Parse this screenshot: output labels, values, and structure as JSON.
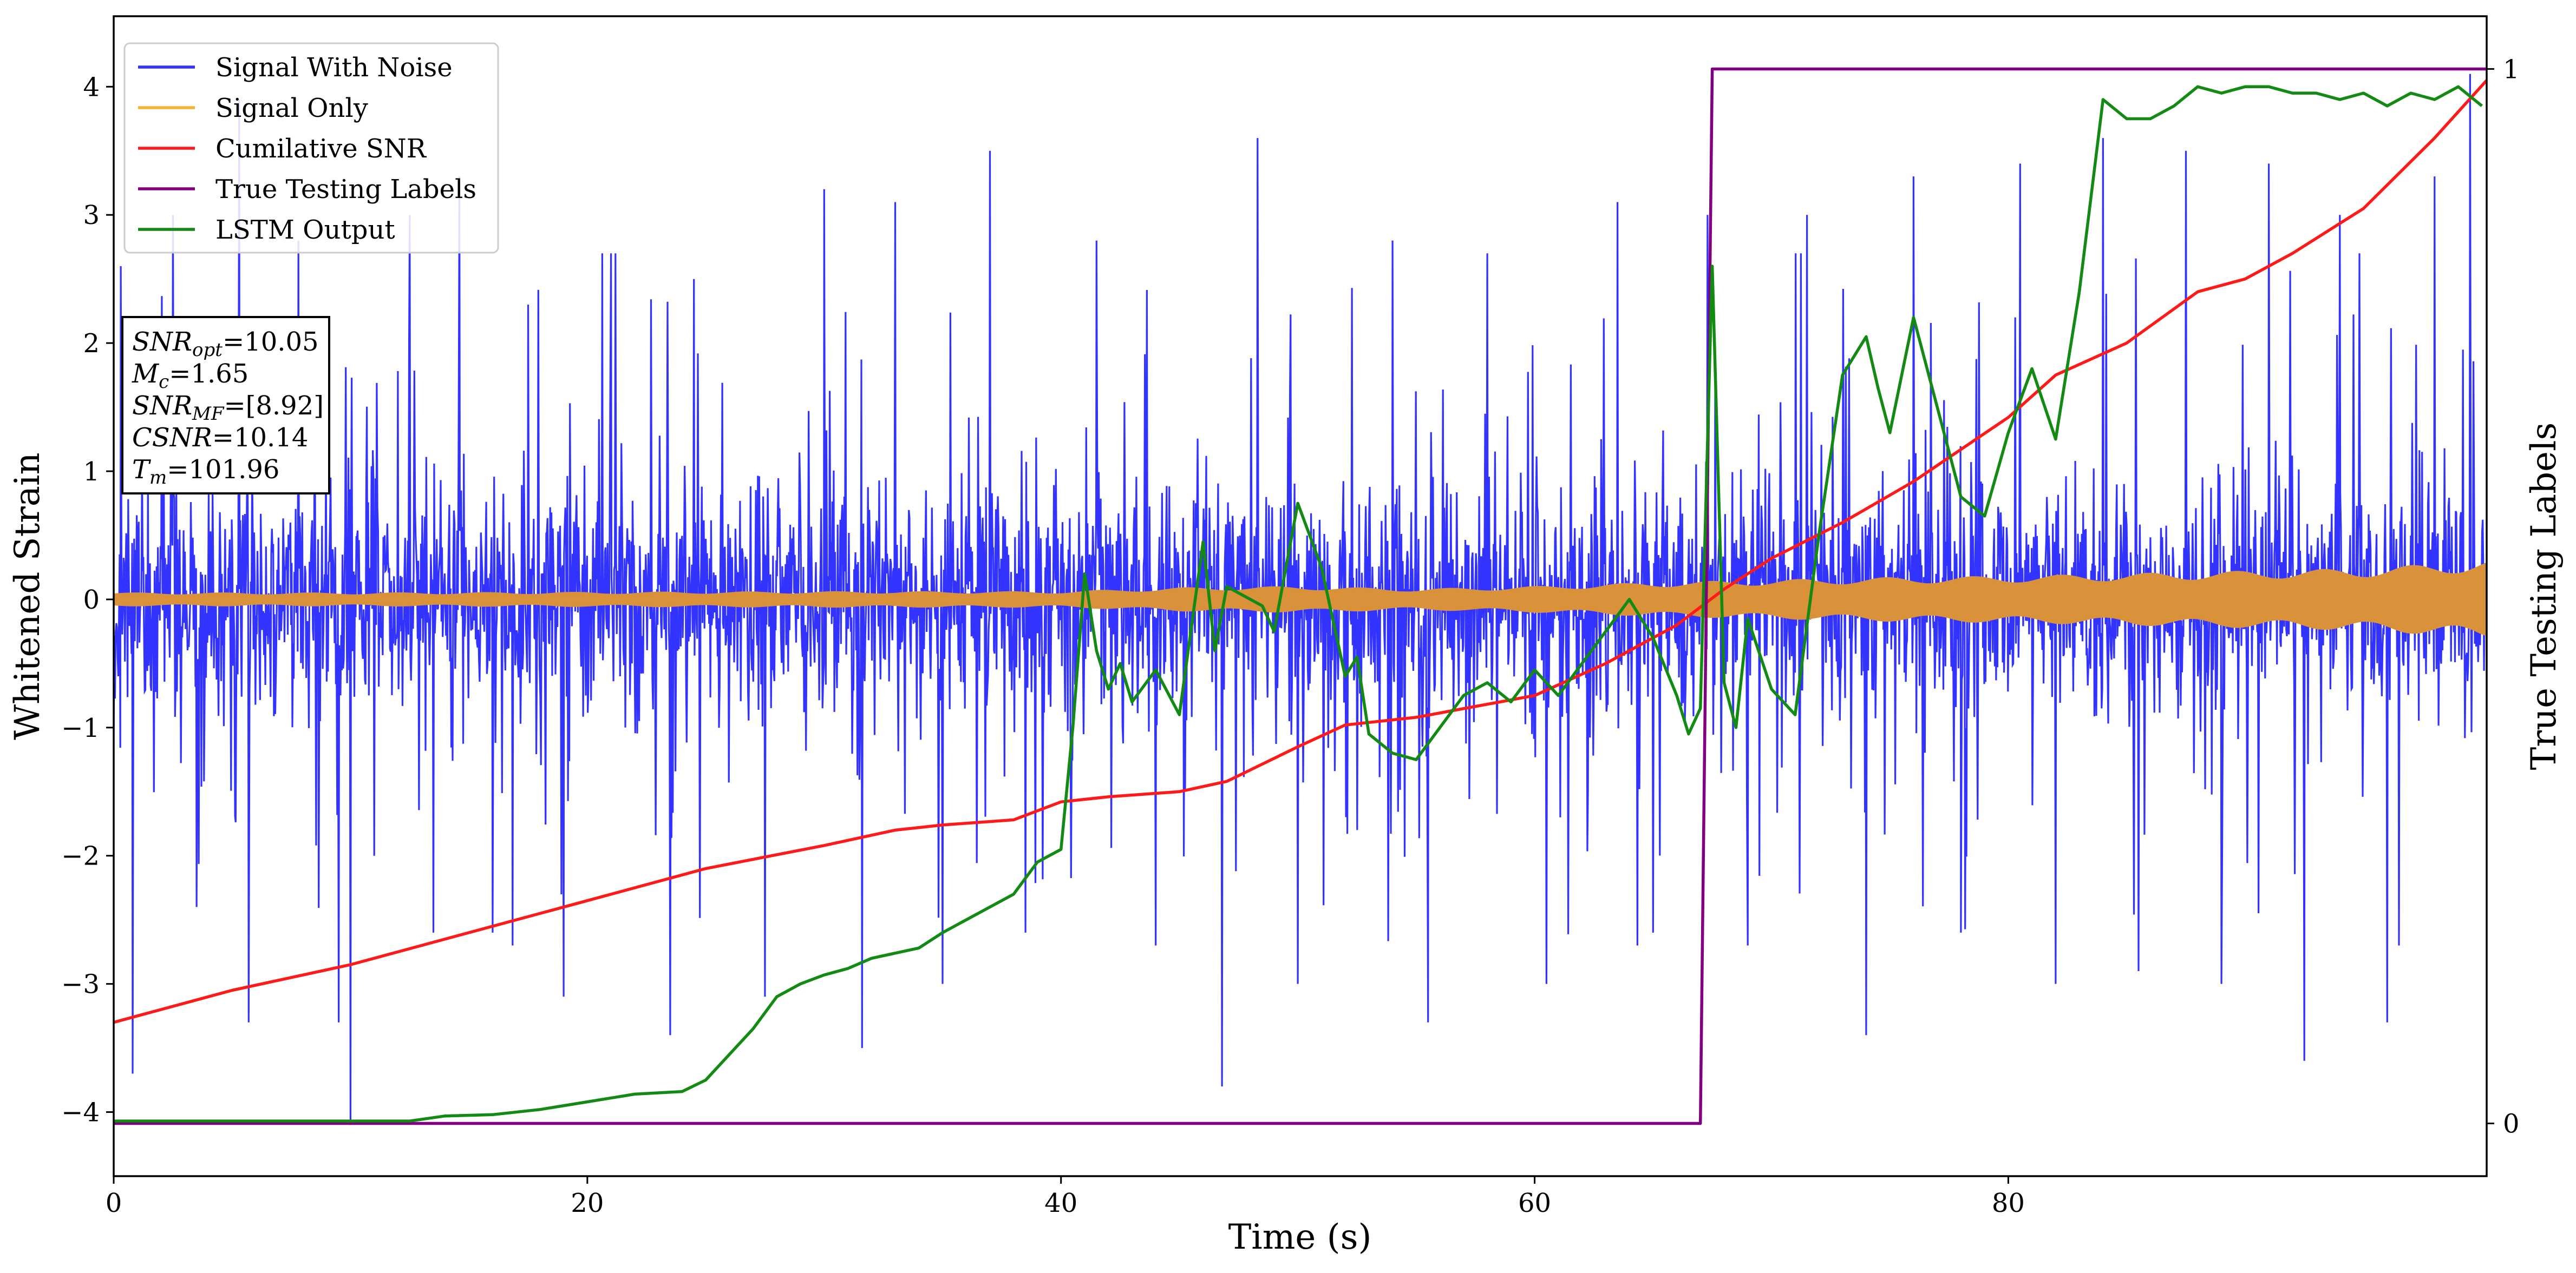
{
  "chart_data": {
    "type": "line",
    "xlabel": "Time (s)",
    "ylabel": "Whitened Strain",
    "y2label": "True Testing Labels",
    "xlim": [
      0,
      100.2
    ],
    "ylim": [
      -4.5,
      4.55
    ],
    "y2lim": [
      -0.05,
      1.05
    ],
    "xticks": [
      0,
      20,
      40,
      60,
      80
    ],
    "yticks": [
      -4,
      -3,
      -2,
      -1,
      0,
      1,
      2,
      3,
      4
    ],
    "y2ticks": [
      0,
      1
    ],
    "legend_position": "top-left",
    "legend": [
      {
        "name": "Signal With Noise",
        "color": "#3333ff"
      },
      {
        "name": "Signal Only",
        "color": "#f5b338"
      },
      {
        "name": "Cumilative SNR",
        "color": "#ff1a1a"
      },
      {
        "name": "True Testing Labels",
        "color": "#800080"
      },
      {
        "name": "LSTM Output",
        "color": "#138a13"
      }
    ],
    "annotation": [
      {
        "base": "SNR",
        "sub": "opt",
        "value": "=10.05"
      },
      {
        "base": "M",
        "sub": "c",
        "value": "=1.65"
      },
      {
        "base": "SNR",
        "sub": "MF",
        "value": "=[8.92]"
      },
      {
        "base": "CSNR",
        "sub": "",
        "value": "=10.14"
      },
      {
        "base": "T",
        "sub": "m",
        "value": "=101.96"
      }
    ],
    "signal_with_noise": {
      "axis": "left",
      "color": "#3333ff",
      "typical_range": [
        -1.6,
        1.6
      ],
      "peaks": [
        {
          "x": 0.3,
          "y": 2.6
        },
        {
          "x": 0.8,
          "y": -3.7
        },
        {
          "x": 2.5,
          "y": 3.0
        },
        {
          "x": 3.5,
          "y": -2.4
        },
        {
          "x": 5.3,
          "y": 3.9
        },
        {
          "x": 5.7,
          "y": -3.3
        },
        {
          "x": 7.8,
          "y": 2.8
        },
        {
          "x": 9.5,
          "y": -3.3
        },
        {
          "x": 10.0,
          "y": -4.1
        },
        {
          "x": 11.0,
          "y": -2.0
        },
        {
          "x": 12.5,
          "y": 3.0
        },
        {
          "x": 13.5,
          "y": -2.6
        },
        {
          "x": 14.6,
          "y": 3.3
        },
        {
          "x": 16.0,
          "y": -2.6
        },
        {
          "x": 17.5,
          "y": 2.3
        },
        {
          "x": 19.0,
          "y": -3.1
        },
        {
          "x": 21.0,
          "y": 2.7
        },
        {
          "x": 23.5,
          "y": -3.4
        },
        {
          "x": 24.5,
          "y": 2.5
        },
        {
          "x": 27.5,
          "y": -3.1
        },
        {
          "x": 30.0,
          "y": 3.2
        },
        {
          "x": 31.6,
          "y": -3.5
        },
        {
          "x": 33.0,
          "y": 3.1
        },
        {
          "x": 35.0,
          "y": -3.0
        },
        {
          "x": 37.0,
          "y": 3.5
        },
        {
          "x": 38.5,
          "y": -2.6
        },
        {
          "x": 41.5,
          "y": 2.8
        },
        {
          "x": 44.0,
          "y": -2.7
        },
        {
          "x": 46.8,
          "y": -3.8
        },
        {
          "x": 48.3,
          "y": 3.6
        },
        {
          "x": 50.0,
          "y": -3.0
        },
        {
          "x": 54.0,
          "y": 2.8
        },
        {
          "x": 55.5,
          "y": -3.3
        },
        {
          "x": 58.0,
          "y": 2.7
        },
        {
          "x": 60.5,
          "y": -3.0
        },
        {
          "x": 63.5,
          "y": 3.1
        },
        {
          "x": 65.0,
          "y": -2.6
        },
        {
          "x": 67.3,
          "y": 3.0
        },
        {
          "x": 69.0,
          "y": -2.7
        },
        {
          "x": 71.5,
          "y": 3.0
        },
        {
          "x": 74.0,
          "y": -3.4
        },
        {
          "x": 76.0,
          "y": 3.3
        },
        {
          "x": 78.0,
          "y": -2.6
        },
        {
          "x": 80.5,
          "y": 3.4
        },
        {
          "x": 82.0,
          "y": -3.0
        },
        {
          "x": 84.0,
          "y": 3.6
        },
        {
          "x": 85.5,
          "y": -2.9
        },
        {
          "x": 87.5,
          "y": 3.5
        },
        {
          "x": 89.0,
          "y": -3.0
        },
        {
          "x": 91.0,
          "y": 3.4
        },
        {
          "x": 92.5,
          "y": -3.6
        },
        {
          "x": 94.0,
          "y": 3.0
        },
        {
          "x": 96.0,
          "y": -3.3
        },
        {
          "x": 98.0,
          "y": 3.3
        },
        {
          "x": 99.5,
          "y": 4.1
        }
      ]
    },
    "signal_only_envelope": {
      "axis": "left",
      "color": "#d9913a",
      "x": [
        0,
        10,
        20,
        30,
        40,
        45,
        50,
        55,
        60,
        65,
        70,
        75,
        80,
        85,
        90,
        95,
        100.2
      ],
      "amplitude": [
        0.05,
        0.05,
        0.055,
        0.06,
        0.06,
        0.09,
        0.1,
        0.08,
        0.1,
        0.13,
        0.15,
        0.17,
        0.18,
        0.2,
        0.22,
        0.24,
        0.3
      ]
    },
    "series": [
      {
        "name": "Cumilative SNR",
        "axis": "left",
        "color": "#ff1a1a",
        "x": [
          0,
          2,
          5,
          10,
          15,
          20,
          25,
          30,
          33,
          35,
          38,
          40,
          42,
          45,
          47,
          50,
          52,
          55,
          60,
          63,
          66,
          68,
          70,
          73,
          76,
          80,
          82,
          85,
          88,
          90,
          92,
          95,
          98,
          100.2
        ],
        "values": [
          -3.3,
          -3.2,
          -3.05,
          -2.85,
          -2.6,
          -2.35,
          -2.1,
          -1.92,
          -1.8,
          -1.76,
          -1.72,
          -1.58,
          -1.54,
          -1.5,
          -1.42,
          -1.15,
          -0.98,
          -0.92,
          -0.75,
          -0.5,
          -0.2,
          0.08,
          0.32,
          0.6,
          0.92,
          1.42,
          1.75,
          2.0,
          2.4,
          2.5,
          2.7,
          3.05,
          3.6,
          4.05
        ]
      },
      {
        "name": "True Testing Labels",
        "axis": "right",
        "color": "#800080",
        "x": [
          0,
          67.0,
          67.5,
          100.2
        ],
        "values": [
          0,
          0,
          1,
          1
        ]
      },
      {
        "name": "LSTM Output",
        "axis": "left",
        "color": "#138a13",
        "x": [
          0,
          10,
          12.5,
          14,
          16,
          18,
          20,
          22,
          24,
          25,
          26,
          27,
          28,
          29,
          30,
          31,
          32,
          33,
          34,
          35,
          36,
          38,
          39,
          40,
          40.5,
          41,
          41.5,
          42,
          42.5,
          43,
          44,
          45,
          46,
          46.5,
          47,
          48,
          48.5,
          49,
          50,
          51,
          52,
          52.5,
          53,
          54,
          55,
          56,
          57,
          58,
          59,
          60,
          61,
          62,
          63,
          64,
          65,
          66,
          66.5,
          67,
          67.5,
          68,
          68.5,
          69,
          70,
          71,
          72,
          73,
          74,
          74.5,
          75,
          76,
          77,
          78,
          79,
          80,
          81,
          82,
          83,
          84,
          85,
          86,
          87,
          88,
          89,
          90,
          91,
          92,
          93,
          94,
          95,
          96,
          97,
          98,
          99,
          100
        ],
        "values": [
          -4.07,
          -4.07,
          -4.07,
          -4.03,
          -4.02,
          -3.98,
          -3.92,
          -3.86,
          -3.84,
          -3.75,
          -3.55,
          -3.35,
          -3.1,
          -3.0,
          -2.93,
          -2.88,
          -2.8,
          -2.76,
          -2.72,
          -2.6,
          -2.5,
          -2.3,
          -2.05,
          -1.95,
          -1.0,
          0.2,
          -0.4,
          -0.7,
          -0.5,
          -0.8,
          -0.55,
          -0.9,
          0.45,
          -0.4,
          0.1,
          0.0,
          -0.05,
          -0.25,
          0.75,
          0.25,
          -0.6,
          -0.45,
          -1.05,
          -1.2,
          -1.25,
          -1.0,
          -0.75,
          -0.65,
          -0.8,
          -0.55,
          -0.75,
          -0.5,
          -0.25,
          0.0,
          -0.3,
          -0.75,
          -1.05,
          -0.85,
          2.6,
          -0.65,
          -1.0,
          -0.15,
          -0.7,
          -0.9,
          0.5,
          1.75,
          2.05,
          1.65,
          1.3,
          2.2,
          1.5,
          0.8,
          0.65,
          1.3,
          1.8,
          1.25,
          2.4,
          3.9,
          3.75,
          3.75,
          3.85,
          4.0,
          3.95,
          4.0,
          4.0,
          3.95,
          3.95,
          3.9,
          3.95,
          3.85,
          3.95,
          3.9,
          4.0,
          3.85
        ]
      }
    ]
  }
}
